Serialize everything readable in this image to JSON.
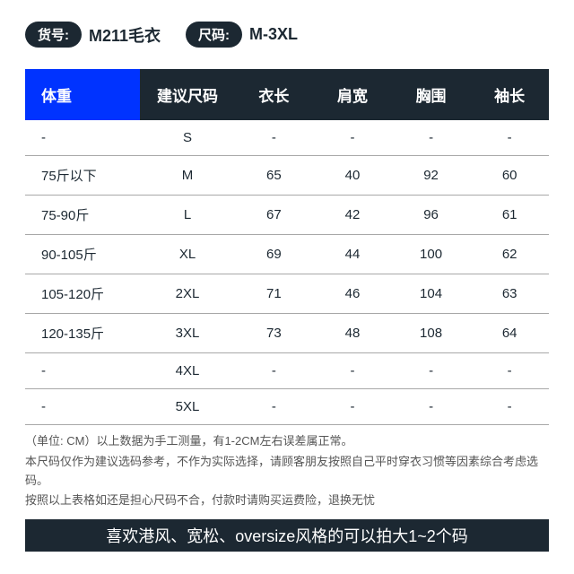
{
  "colors": {
    "pill_bg": "#1c2832",
    "meta_value": "#1c2832",
    "table_header_bg": "#1c2832",
    "table_header_first_bg": "#0033ff",
    "row_border": "#a8a8a8",
    "cell_text": "#1c2832",
    "notes_text": "#555555",
    "banner_bg": "#1c2832"
  },
  "meta": {
    "sku_label": "货号:",
    "sku_value": "M211毛衣",
    "size_label": "尺码:",
    "size_value": "M-3XL"
  },
  "table": {
    "columns": [
      "体重",
      "建议尺码",
      "衣长",
      "肩宽",
      "胸围",
      "袖长"
    ],
    "col_widths": [
      "22%",
      "18%",
      "15%",
      "15%",
      "15%",
      "15%"
    ],
    "rows": [
      [
        "-",
        "S",
        "-",
        "-",
        "-",
        "-"
      ],
      [
        "75斤以下",
        "M",
        "65",
        "40",
        "92",
        "60"
      ],
      [
        "75-90斤",
        "L",
        "67",
        "42",
        "96",
        "61"
      ],
      [
        "90-105斤",
        "XL",
        "69",
        "44",
        "100",
        "62"
      ],
      [
        "105-120斤",
        "2XL",
        "71",
        "46",
        "104",
        "63"
      ],
      [
        "120-135斤",
        "3XL",
        "73",
        "48",
        "108",
        "64"
      ],
      [
        "-",
        "4XL",
        "-",
        "-",
        "-",
        "-"
      ],
      [
        "-",
        "5XL",
        "-",
        "-",
        "-",
        "-"
      ]
    ]
  },
  "notes": {
    "line1": "（单位: CM）以上数据为手工测量，有1-2CM左右误差属正常。",
    "line2": "本尺码仅作为建议选码参考，不作为实际选择，请顾客朋友按照自己平时穿衣习惯等因素综合考虑选码。",
    "line3": "按照以上表格如还是担心尺码不合，付款时请购买运费险，退换无忧"
  },
  "banner": "喜欢港风、宽松、oversize风格的可以拍大1~2个码"
}
